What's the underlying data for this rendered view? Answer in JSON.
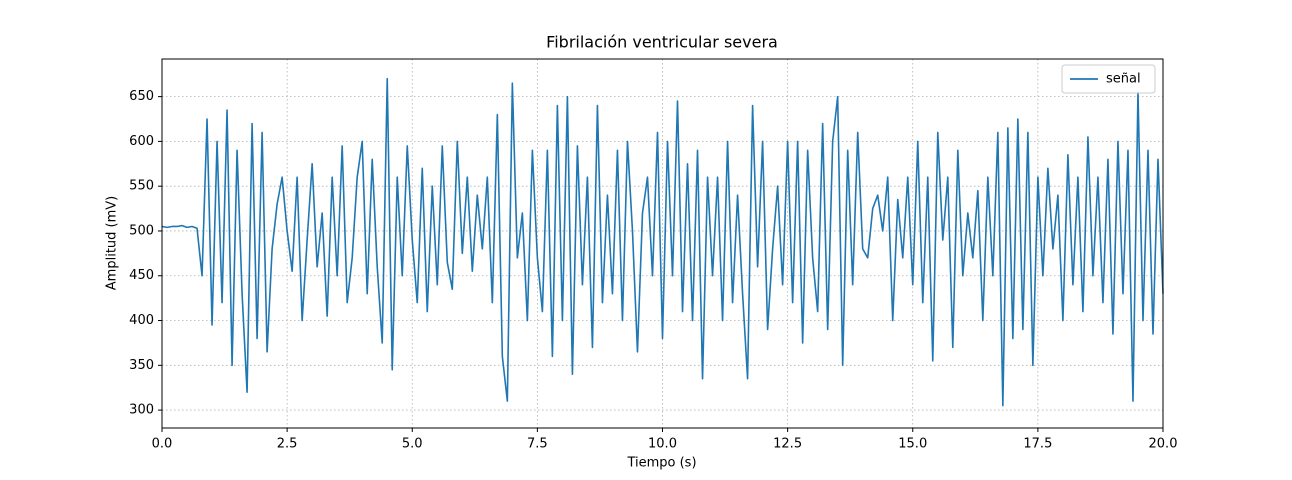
{
  "chart_data": {
    "type": "line",
    "title": "Fibrilación ventricular severa",
    "xlabel": "Tiempo (s)",
    "ylabel": "Amplitud (mV)",
    "x": [
      0,
      0.1,
      0.2,
      0.3,
      0.4,
      0.5,
      0.6,
      0.7,
      0.8,
      0.9,
      1,
      1.1,
      1.2,
      1.3,
      1.4,
      1.5,
      1.6,
      1.7,
      1.8,
      1.9,
      2,
      2.1,
      2.2,
      2.3,
      2.4,
      2.5,
      2.6,
      2.7,
      2.8,
      2.9,
      3,
      3.1,
      3.2,
      3.3,
      3.4,
      3.5,
      3.6,
      3.7,
      3.8,
      3.9,
      4,
      4.1,
      4.2,
      4.3,
      4.4,
      4.5,
      4.6,
      4.7,
      4.8,
      4.9,
      5,
      5.1,
      5.2,
      5.3,
      5.4,
      5.5,
      5.6,
      5.7,
      5.8,
      5.9,
      6,
      6.1,
      6.2,
      6.3,
      6.4,
      6.5,
      6.6,
      6.7,
      6.8,
      6.9,
      7,
      7.1,
      7.2,
      7.3,
      7.4,
      7.5,
      7.6,
      7.7,
      7.8,
      7.9,
      8,
      8.1,
      8.2,
      8.3,
      8.4,
      8.5,
      8.6,
      8.7,
      8.8,
      8.9,
      9,
      9.1,
      9.2,
      9.3,
      9.4,
      9.5,
      9.6,
      9.7,
      9.8,
      9.9,
      10,
      10.1,
      10.2,
      10.3,
      10.4,
      10.5,
      10.6,
      10.7,
      10.8,
      10.9,
      11,
      11.1,
      11.2,
      11.3,
      11.4,
      11.5,
      11.6,
      11.7,
      11.8,
      11.9,
      12,
      12.1,
      12.2,
      12.3,
      12.4,
      12.5,
      12.6,
      12.7,
      12.8,
      12.9,
      13,
      13.1,
      13.2,
      13.3,
      13.4,
      13.5,
      13.6,
      13.7,
      13.8,
      13.9,
      14,
      14.1,
      14.2,
      14.3,
      14.4,
      14.5,
      14.6,
      14.7,
      14.8,
      14.9,
      15,
      15.1,
      15.2,
      15.3,
      15.4,
      15.5,
      15.6,
      15.7,
      15.8,
      15.9,
      16,
      16.1,
      16.2,
      16.3,
      16.4,
      16.5,
      16.6,
      16.7,
      16.8,
      16.9,
      17,
      17.1,
      17.2,
      17.3,
      17.4,
      17.5,
      17.6,
      17.7,
      17.8,
      17.9,
      18,
      18.1,
      18.2,
      18.3,
      18.4,
      18.5,
      18.6,
      18.7,
      18.8,
      18.9,
      19,
      19.1,
      19.2,
      19.3,
      19.4,
      19.5,
      19.6,
      19.7,
      19.8,
      19.9,
      20
    ],
    "series": [
      {
        "name": "señal",
        "color": "#1f77b4",
        "values": [
          505,
          504,
          505,
          505,
          506,
          504,
          505,
          503,
          450,
          625,
          395,
          600,
          420,
          635,
          350,
          590,
          430,
          320,
          620,
          380,
          610,
          365,
          480,
          530,
          560,
          500,
          455,
          560,
          400,
          490,
          575,
          460,
          520,
          405,
          560,
          450,
          595,
          420,
          470,
          560,
          600,
          430,
          580,
          460,
          375,
          670,
          345,
          560,
          450,
          595,
          490,
          420,
          570,
          410,
          550,
          440,
          595,
          465,
          435,
          600,
          475,
          560,
          455,
          540,
          480,
          560,
          420,
          630,
          360,
          310,
          665,
          470,
          520,
          400,
          590,
          470,
          410,
          590,
          360,
          640,
          400,
          650,
          340,
          595,
          440,
          560,
          370,
          640,
          420,
          540,
          430,
          590,
          400,
          600,
          500,
          365,
          520,
          560,
          450,
          610,
          380,
          600,
          450,
          645,
          410,
          575,
          400,
          590,
          335,
          560,
          450,
          560,
          400,
          600,
          420,
          540,
          430,
          335,
          640,
          460,
          600,
          390,
          480,
          550,
          440,
          600,
          420,
          600,
          375,
          590,
          470,
          410,
          620,
          390,
          600,
          650,
          350,
          590,
          440,
          610,
          480,
          470,
          525,
          540,
          500,
          560,
          400,
          535,
          470,
          560,
          440,
          600,
          420,
          560,
          355,
          610,
          490,
          560,
          370,
          590,
          450,
          520,
          470,
          545,
          400,
          560,
          450,
          610,
          305,
          615,
          380,
          625,
          390,
          610,
          350,
          560,
          450,
          570,
          480,
          540,
          400,
          585,
          440,
          560,
          410,
          605,
          450,
          560,
          420,
          580,
          385,
          600,
          430,
          590,
          310,
          655,
          400,
          590,
          385,
          580,
          430
        ]
      }
    ],
    "xlim": [
      0,
      20
    ],
    "xticks": [
      {
        "value": 0,
        "label": "0.0"
      },
      2.5,
      {
        "value": 5,
        "label": "5.0"
      },
      7.5,
      {
        "value": 10,
        "label": "10.0"
      },
      12.5,
      {
        "value": 15,
        "label": "15.0"
      },
      17.5,
      {
        "value": 20,
        "label": "20.0"
      }
    ],
    "ylim": [
      280,
      692
    ],
    "yticks": [
      300,
      350,
      400,
      450,
      500,
      550,
      600,
      650
    ],
    "grid": true,
    "legend": "upper-right"
  }
}
